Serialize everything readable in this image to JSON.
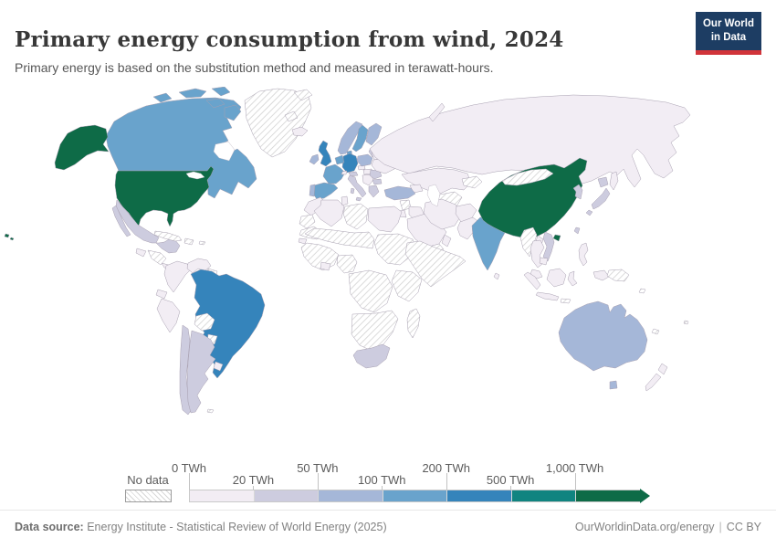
{
  "header": {
    "title": "Primary energy consumption from wind, 2024",
    "subtitle": "Primary energy is based on the substitution method and measured in terawatt-hours.",
    "logo_line1": "Our World",
    "logo_line2": "in Data"
  },
  "legend": {
    "no_data_label": "No data",
    "ticks": [
      "0 TWh",
      "20 TWh",
      "50 TWh",
      "100 TWh",
      "200 TWh",
      "500 TWh",
      "1,000 TWh"
    ],
    "colors": [
      "#f2edf4",
      "#cdccdf",
      "#a5b7d8",
      "#69a3cc",
      "#3584bb",
      "#108480",
      "#0e6b47"
    ]
  },
  "footer": {
    "source_label": "Data source:",
    "source_text": "Energy Institute - Statistical Review of World Energy (2025)",
    "credit_text": "OurWorldinData.org/energy",
    "separator": "|",
    "license_text": "CC BY"
  },
  "chart_data": {
    "type": "choropleth",
    "title": "Primary energy consumption from wind, 2024",
    "unit": "TWh",
    "bins": [
      "0-20",
      "20-50",
      "50-100",
      "100-200",
      "200-500",
      "500-1,000",
      "1,000+"
    ],
    "bin_colors": [
      "#f2edf4",
      "#cdccdf",
      "#a5b7d8",
      "#69a3cc",
      "#3584bb",
      "#108480",
      "#0e6b47"
    ],
    "no_data_style": "hatched",
    "category_meaning": "value is index into bins/bin_colors, or 'no-data'",
    "region_categories": {
      "united-states": 6,
      "canada": 3,
      "greenland": "no-data",
      "mexico": 1,
      "guatemala": 0,
      "honduras-nicaragua": "no-data",
      "costa-rica-panama": 0,
      "cuba": "no-data",
      "hispaniola": "no-data",
      "puerto-rico": "no-data",
      "colombia": 0,
      "venezuela": 0,
      "guyanas": "no-data",
      "ecuador": 0,
      "peru": 0,
      "brazil": 4,
      "bolivia": "no-data",
      "paraguay": "no-data",
      "chile": 1,
      "argentina": 1,
      "uruguay": 0,
      "falkland-islands": "no-data",
      "iceland": 0,
      "svalbard": "no-data",
      "norway": 2,
      "sweden": 3,
      "finland": 2,
      "baltic-states": 1,
      "united-kingdom": 4,
      "ireland": 2,
      "denmark": 3,
      "germany": 4,
      "netherlands-belgium": 3,
      "france": 3,
      "spain": 3,
      "portugal": 2,
      "italy": 1,
      "switzerland": 0,
      "austria": 1,
      "czechia": 0,
      "poland": 2,
      "hungary-slovakia": 0,
      "balkans": 0,
      "romania": 1,
      "bulgaria": 1,
      "greece": 1,
      "ukraine": 0,
      "belarus": 0,
      "russia": 0,
      "kazakhstan-central-asia": 0,
      "turkmenistan": "no-data",
      "kyrgyzstan-tajikistan": "no-data",
      "caucasus": 0,
      "turkey": 2,
      "syria": "no-data",
      "iraq": 0,
      "jordan-israel": 0,
      "saudi-arabia": 0,
      "yemen": "no-data",
      "oman": 0,
      "iran": 0,
      "afghanistan": 0,
      "pakistan": 0,
      "india": 3,
      "bangladesh": 0,
      "sri-lanka": 0,
      "china": 6,
      "mongolia": "no-data",
      "korea": 1,
      "japan": 1,
      "taiwan": 1,
      "myanmar": "no-data",
      "thailand": 0,
      "laos": 0,
      "cambodia": 0,
      "vietnam": 1,
      "malaysia": 0,
      "philippines": 0,
      "indonesia": 0,
      "papua-new-guinea": "no-data",
      "lesser-sunda": "no-data",
      "morocco": 0,
      "western-sahara": "no-data",
      "algeria": 0,
      "tunisia": 0,
      "libya": "no-data",
      "egypt": 0,
      "mauritania": "no-data",
      "senegal": 0,
      "sahel": "no-data",
      "sudan": "no-data",
      "west-africa": "no-data",
      "ghana-cote-divoire": 0,
      "nigeria-cameroon": "no-data",
      "horn-of-africa": "no-data",
      "east-africa": "no-data",
      "central-africa": "no-data",
      "southern-africa": "no-data",
      "south-africa": 1,
      "madagascar": "no-data",
      "australia": 2,
      "new-zealand": 0,
      "new-caledonia": "no-data",
      "fiji": "no-data",
      "solomon-islands": "no-data"
    }
  }
}
